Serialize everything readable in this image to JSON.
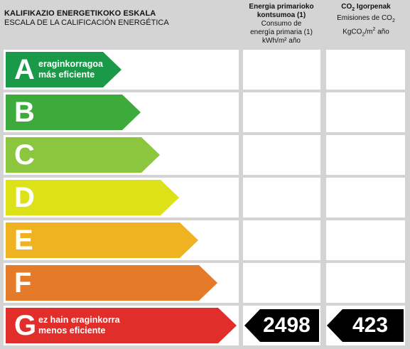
{
  "header": {
    "title_eu": "KALIFIKAZIO ENERGETIKOKO ESKALA",
    "title_es": "ESCALA DE LA CALIFICACIÓN ENERGÉTICA",
    "energy_col": {
      "line1": "Energia primarioko",
      "line2": "kontsumoa (1)",
      "line3": "Consumo de",
      "line4": "energía primaria (1)",
      "line5": "kWh/m² año"
    },
    "co2_col": {
      "line1_pre": "CO",
      "line1_sub": "2",
      "line1_post": " Igorpenak",
      "line2_pre": "Emisiones de CO",
      "line2_sub": "2",
      "line3_pre": "KgCO",
      "line3_sub": "2",
      "line3_mid": "/m",
      "line3_sup": "2",
      "line3_post": " año"
    }
  },
  "scale": [
    {
      "letter": "A",
      "color": "#1a9a48",
      "desc1": "eraginkorragoa",
      "desc2": "más eficiente"
    },
    {
      "letter": "B",
      "color": "#3cab3c",
      "desc1": "",
      "desc2": ""
    },
    {
      "letter": "C",
      "color": "#8cc63f",
      "desc1": "",
      "desc2": ""
    },
    {
      "letter": "D",
      "color": "#dde117",
      "desc1": "",
      "desc2": ""
    },
    {
      "letter": "E",
      "color": "#efb321",
      "desc1": "",
      "desc2": ""
    },
    {
      "letter": "F",
      "color": "#e57a28",
      "desc1": "",
      "desc2": ""
    },
    {
      "letter": "G",
      "color": "#e22e2a",
      "desc1": "ez hain eraginkorra",
      "desc2": "menos eficiente"
    }
  ],
  "rating": {
    "class": "G",
    "energy_value": "2498",
    "co2_value": "423",
    "tag_color": "#000000"
  }
}
